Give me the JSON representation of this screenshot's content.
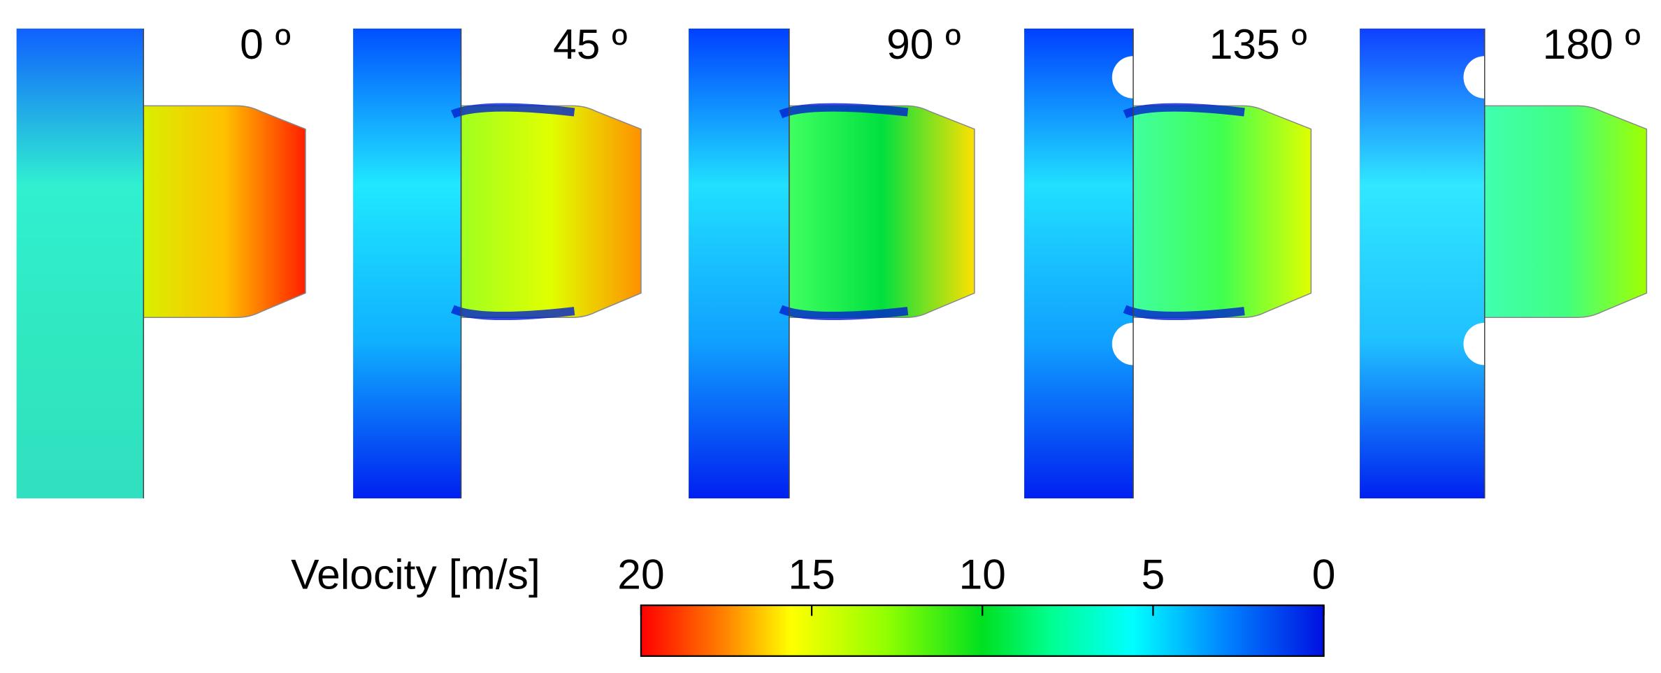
{
  "panels": [
    {
      "label": "0 º"
    },
    {
      "label": "45 º"
    },
    {
      "label": "90 º"
    },
    {
      "label": "135 º"
    },
    {
      "label": "180 º"
    }
  ],
  "colorbar": {
    "title": "Velocity [m/s]",
    "lim": [
      20,
      0
    ],
    "ticks": [
      20,
      15,
      10,
      5,
      0
    ]
  }
}
